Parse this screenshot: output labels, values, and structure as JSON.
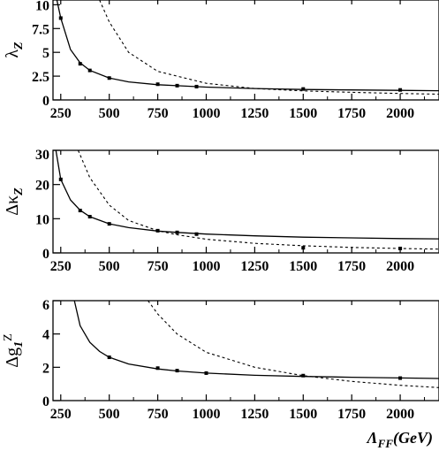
{
  "chart_data": [
    {
      "type": "line",
      "ylabel": "λ_Z",
      "ylabel_main": "λ",
      "ylabel_sub": "Z",
      "xlabel": "",
      "xlim": [
        210,
        2200
      ],
      "ylim": [
        0,
        10.5
      ],
      "xticks": [
        250,
        500,
        750,
        1000,
        1250,
        1500,
        1750,
        2000
      ],
      "xtick_labels": [
        "250",
        "500",
        "750",
        "1000",
        "1250",
        "1500",
        "1750",
        "2000"
      ],
      "yticks": [
        0,
        2.5,
        5,
        7.5,
        10
      ],
      "ytick_labels": [
        "0",
        "2.5",
        "5",
        "7.5",
        "10"
      ],
      "series": [
        {
          "style": "solid",
          "x": [
            230,
            250,
            300,
            350,
            400,
            500,
            600,
            750,
            850,
            1000,
            1250,
            1500,
            1750,
            2000,
            2200
          ],
          "y": [
            10.5,
            8.6,
            5.3,
            3.9,
            3.1,
            2.3,
            1.9,
            1.6,
            1.5,
            1.35,
            1.2,
            1.1,
            1.05,
            1.0,
            0.97
          ]
        },
        {
          "style": "dashed",
          "x": [
            450,
            500,
            600,
            750,
            1000,
            1250,
            1500,
            1750,
            2000,
            2200
          ],
          "y": [
            10.5,
            8.2,
            5.0,
            3.0,
            1.75,
            1.2,
            0.95,
            0.8,
            0.68,
            0.6
          ]
        }
      ],
      "points": {
        "x": [
          250,
          350,
          400,
          500,
          750,
          850,
          950,
          1500,
          2000
        ],
        "y": [
          8.6,
          3.8,
          3.1,
          2.3,
          1.65,
          1.5,
          1.4,
          1.15,
          1.05
        ]
      }
    },
    {
      "type": "line",
      "ylabel": "Δκ_Z",
      "ylabel_main": "Δκ",
      "ylabel_sub": "Z",
      "xlabel": "",
      "xlim": [
        210,
        2200
      ],
      "ylim": [
        0,
        30
      ],
      "xticks": [
        250,
        500,
        750,
        1000,
        1250,
        1500,
        1750,
        2000
      ],
      "xtick_labels": [
        "250",
        "500",
        "750",
        "1000",
        "1250",
        "1500",
        "1750",
        "2000"
      ],
      "yticks": [
        0,
        10,
        20,
        30
      ],
      "ytick_labels": [
        "0",
        "10",
        "20",
        "30"
      ],
      "series": [
        {
          "style": "solid",
          "x": [
            225,
            250,
            300,
            350,
            400,
            500,
            600,
            750,
            850,
            1000,
            1250,
            1500,
            1750,
            2000,
            2200
          ],
          "y": [
            30,
            21.5,
            15.5,
            12.5,
            10.6,
            8.5,
            7.4,
            6.4,
            6.0,
            5.5,
            5.0,
            4.6,
            4.4,
            4.2,
            4.1
          ]
        },
        {
          "style": "dashed",
          "x": [
            340,
            400,
            500,
            600,
            750,
            850,
            1000,
            1250,
            1500,
            1750,
            2000,
            2200
          ],
          "y": [
            30,
            22,
            14,
            9.5,
            6.5,
            5.3,
            4.0,
            2.8,
            2.1,
            1.6,
            1.3,
            1.1
          ]
        }
      ],
      "points": {
        "x": [
          250,
          350,
          400,
          500,
          750,
          850,
          950,
          1500,
          2000
        ],
        "y": [
          21.5,
          12.4,
          10.6,
          8.5,
          6.5,
          6.0,
          5.5,
          1.5,
          1.3
        ]
      }
    },
    {
      "type": "line",
      "ylabel": "Δg_1^Z",
      "ylabel_main": "Δg",
      "ylabel_sub": "1",
      "ylabel_sup": "Z",
      "xlabel": "Λ_FF(GeV)",
      "xlabel_main": "Λ",
      "xlabel_sub": "FF",
      "xlabel_tail": "(GeV)",
      "xlim": [
        210,
        2200
      ],
      "ylim": [
        0,
        6
      ],
      "xticks": [
        250,
        500,
        750,
        1000,
        1250,
        1500,
        1750,
        2000
      ],
      "xtick_labels": [
        "250",
        "500",
        "750",
        "1000",
        "1250",
        "1500",
        "1750",
        "2000"
      ],
      "yticks": [
        0,
        2,
        4,
        6
      ],
      "ytick_labels": [
        "0",
        "2",
        "4",
        "6"
      ],
      "series": [
        {
          "style": "solid",
          "x": [
            320,
            350,
            400,
            450,
            500,
            600,
            750,
            850,
            1000,
            1250,
            1500,
            1750,
            2000,
            2200
          ],
          "y": [
            6.0,
            4.5,
            3.5,
            2.95,
            2.6,
            2.2,
            1.9,
            1.78,
            1.65,
            1.52,
            1.45,
            1.4,
            1.36,
            1.33
          ]
        },
        {
          "style": "dashed",
          "x": [
            700,
            750,
            850,
            1000,
            1250,
            1500,
            1750,
            2000,
            2200
          ],
          "y": [
            6.0,
            5.2,
            4.0,
            2.9,
            2.0,
            1.5,
            1.15,
            0.92,
            0.78
          ]
        }
      ],
      "points": {
        "x": [
          500,
          750,
          850,
          1000,
          1500,
          2000
        ],
        "y": [
          2.6,
          1.95,
          1.8,
          1.65,
          1.5,
          1.35
        ]
      }
    }
  ]
}
